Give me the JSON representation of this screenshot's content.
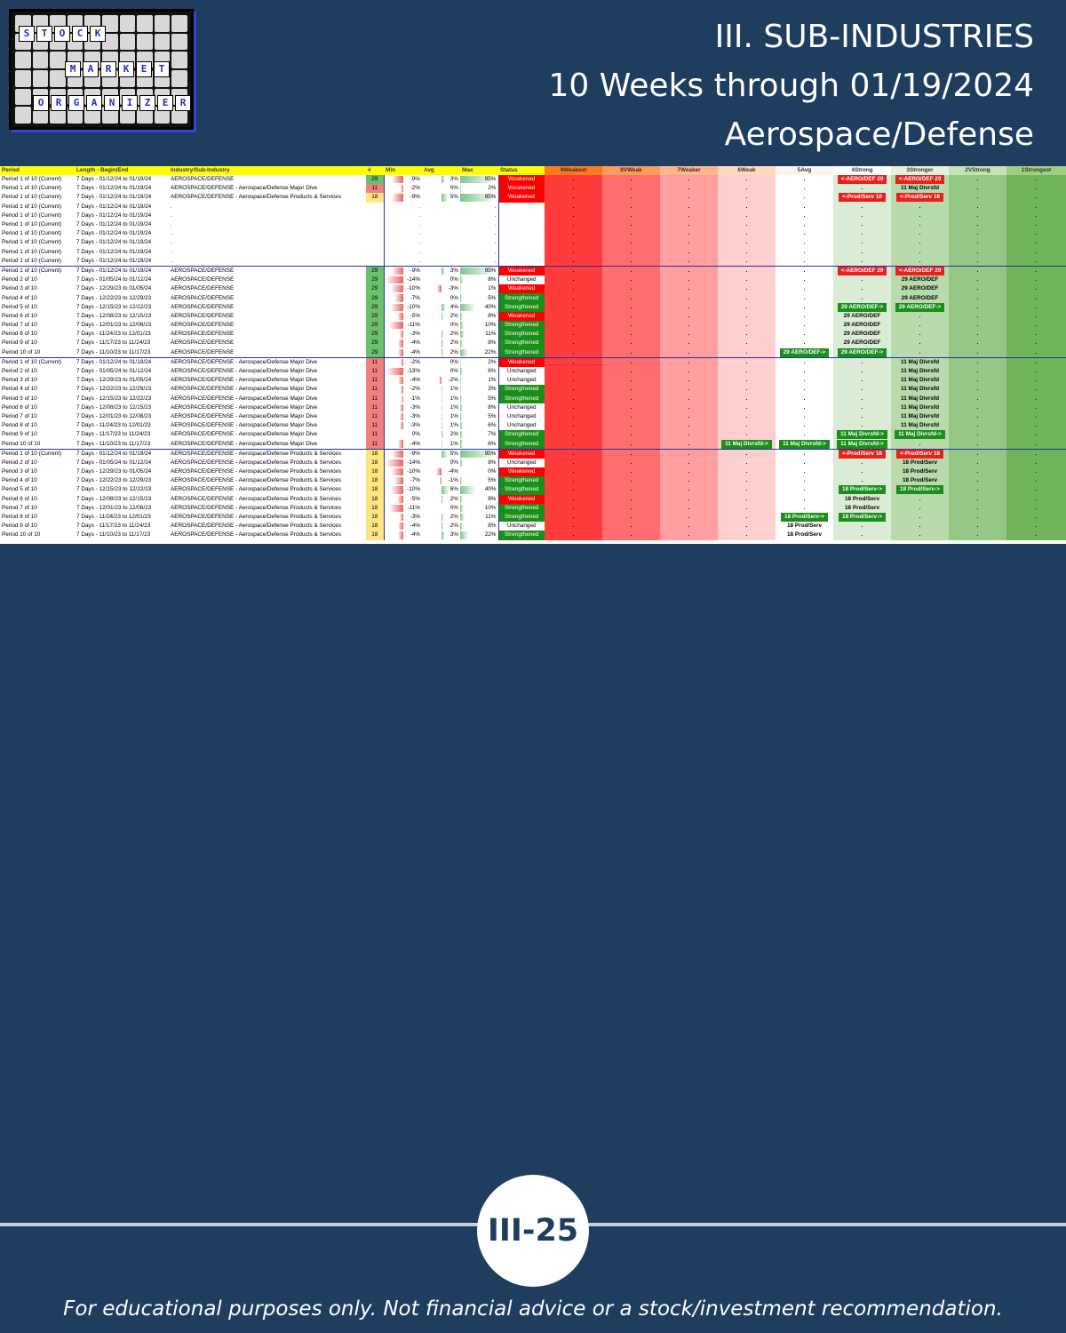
{
  "logo": {
    "words": [
      "STOCK",
      "MARKET",
      "ORGANIZER"
    ]
  },
  "title": {
    "line1": "III. SUB-INDUSTRIES",
    "line2": "10 Weeks through 01/19/2024",
    "line3": "Aerospace/Defense"
  },
  "table": {
    "columns": [
      "Period",
      "Length - Begin/End",
      "Industry/Sub-Industry",
      "#",
      "Min",
      "Avg",
      "Max",
      "Status",
      "9Weakest",
      "8VWeak",
      "7Weaker",
      "6Weak",
      "5Avg",
      "4Strong",
      "3Stronger",
      "2VStrong",
      "1Strongest"
    ],
    "colors": {
      "weakened": "#ff0000",
      "strengthened": "#1a8f1a",
      "header": "#ffff00"
    },
    "rows": [
      [
        "Period 1 of 10 (Current)",
        "7 Days - 01/12/24 to 01/19/24",
        "AEROSPACE/DEFENSE",
        "29",
        "-9%",
        "3%",
        "95%",
        "Weakened",
        "",
        "",
        "",
        "",
        "",
        "r:<-AERO/DEF 29",
        "r:<-AERO/DEF 29",
        "",
        ""
      ],
      [
        "Period 1 of 10 (Current)",
        "7 Days - 01/12/24 to 01/19/24",
        "AEROSPACE/DEFENSE - Aerospace/Defense Major Dive",
        "11",
        "-2%",
        "0%",
        "2%",
        "Weakened",
        "",
        "",
        "",
        "",
        "",
        "",
        "11 Maj Divrsfd",
        "",
        ""
      ],
      [
        "Period 1 of 10 (Current)",
        "7 Days - 01/12/24 to 01/19/24",
        "AEROSPACE/DEFENSE - Aerospace/Defense Products & Services",
        "18",
        "-9%",
        "5%",
        "95%",
        "Weakened",
        "",
        "",
        "",
        "",
        "",
        "r:<-Prod/Serv 18",
        "r:<-Prod/Serv 18",
        "",
        ""
      ],
      [
        "Period 1 of 10 (Current)",
        "7 Days - 01/12/24 to 01/19/24",
        ".",
        "",
        "",
        "",
        "",
        "",
        "",
        "",
        "",
        "",
        "",
        "",
        "",
        "",
        ""
      ],
      [
        "Period 1 of 10 (Current)",
        "7 Days - 01/12/24 to 01/19/24",
        ".",
        "",
        "",
        "",
        "",
        "",
        "",
        "",
        "",
        "",
        "",
        "",
        "",
        "",
        ""
      ],
      [
        "Period 1 of 10 (Current)",
        "7 Days - 01/12/24 to 01/19/24",
        ".",
        "",
        "",
        "",
        "",
        "",
        "",
        "",
        "",
        "",
        "",
        "",
        "",
        "",
        ""
      ],
      [
        "Period 1 of 10 (Current)",
        "7 Days - 01/12/24 to 01/19/24",
        ".",
        "",
        "",
        "",
        "",
        "",
        "",
        "",
        "",
        "",
        "",
        "",
        "",
        "",
        ""
      ],
      [
        "Period 1 of 10 (Current)",
        "7 Days - 01/12/24 to 01/19/24",
        ".",
        "",
        "",
        "",
        "",
        "",
        "",
        "",
        "",
        "",
        "",
        "",
        "",
        "",
        ""
      ],
      [
        "Period 1 of 10 (Current)",
        "7 Days - 01/12/24 to 01/19/24",
        ".",
        "",
        "",
        "",
        "",
        "",
        "",
        "",
        "",
        "",
        "",
        "",
        "",
        "",
        ""
      ],
      [
        "Period 1 of 10 (Current)",
        "7 Days - 01/12/24 to 01/19/24",
        ".",
        "",
        "",
        "",
        "",
        "",
        "",
        "",
        "",
        "",
        "",
        "",
        "",
        "",
        ""
      ],
      [
        "Period 1 of 10 (Current)",
        "7 Days - 01/12/24 to 01/19/24",
        "AEROSPACE/DEFENSE",
        "29",
        "-9%",
        "3%",
        "95%",
        "Weakened",
        "",
        "",
        "",
        "",
        "",
        "r:<-AERO/DEF 29",
        "r:<-AERO/DEF 29",
        "",
        ""
      ],
      [
        "Period 2 of 10",
        "7 Days - 01/05/24 to 01/12/24",
        "AEROSPACE/DEFENSE",
        "29",
        "-14%",
        "0%",
        "8%",
        "Unchanged",
        "",
        "",
        "",
        "",
        "",
        "",
        "29 AERO/DEF",
        "",
        ""
      ],
      [
        "Period 3 of 10",
        "7 Days - 12/29/23 to 01/05/24",
        "AEROSPACE/DEFENSE",
        "29",
        "-10%",
        "-3%",
        "1%",
        "Weakened",
        "",
        "",
        "",
        "",
        "",
        "",
        "29 AERO/DEF",
        "",
        ""
      ],
      [
        "Period 4 of 10",
        "7 Days - 12/22/23 to 12/29/23",
        "AEROSPACE/DEFENSE",
        "29",
        "-7%",
        "0%",
        "5%",
        "Strengthened",
        "",
        "",
        "",
        "",
        "",
        "",
        "29 AERO/DEF",
        "",
        ""
      ],
      [
        "Period 5 of 10",
        "7 Days - 12/15/23 to 12/22/23",
        "AEROSPACE/DEFENSE",
        "29",
        "-10%",
        "4%",
        "40%",
        "Strengthened",
        "",
        "",
        "",
        "",
        "",
        "g:29 AERO/DEF->",
        "g:29 AERO/DEF->",
        "",
        ""
      ],
      [
        "Period 6 of 10",
        "7 Days - 12/08/23 to 12/15/23",
        "AEROSPACE/DEFENSE",
        "29",
        "-5%",
        "2%",
        "8%",
        "Weakened",
        "",
        "",
        "",
        "",
        "",
        "29 AERO/DEF",
        "",
        "",
        ""
      ],
      [
        "Period 7 of 10",
        "7 Days - 12/01/23 to 12/08/23",
        "AEROSPACE/DEFENSE",
        "29",
        "-11%",
        "0%",
        "10%",
        "Strengthened",
        "",
        "",
        "",
        "",
        "",
        "29 AERO/DEF",
        "",
        "",
        ""
      ],
      [
        "Period 8 of 10",
        "7 Days - 11/24/23 to 12/01/23",
        "AEROSPACE/DEFENSE",
        "29",
        "-3%",
        "2%",
        "11%",
        "Strengthened",
        "",
        "",
        "",
        "",
        "",
        "29 AERO/DEF",
        "",
        "",
        ""
      ],
      [
        "Period 9 of 10",
        "7 Days - 11/17/23 to 11/24/23",
        "AEROSPACE/DEFENSE",
        "29",
        "-4%",
        "2%",
        "8%",
        "Strengthened",
        "",
        "",
        "",
        "",
        "",
        "29 AERO/DEF",
        "",
        "",
        ""
      ],
      [
        "Period 10 of 10",
        "7 Days - 11/10/23 to 11/17/23",
        "AEROSPACE/DEFENSE",
        "29",
        "-4%",
        "2%",
        "22%",
        "Strengthened",
        "",
        "",
        "",
        "",
        "g:29 AERO/DEF->",
        "g:29 AERO/DEF->",
        "",
        "",
        ""
      ],
      [
        "Period 1 of 10 (Current)",
        "7 Days - 01/12/24 to 01/19/24",
        "AEROSPACE/DEFENSE - Aerospace/Defense Major Dive",
        "11",
        "-2%",
        "0%",
        "2%",
        "Weakened",
        "",
        "",
        "",
        "",
        "",
        "",
        "11 Maj Divrsfd",
        "",
        ""
      ],
      [
        "Period 2 of 10",
        "7 Days - 01/05/24 to 01/12/24",
        "AEROSPACE/DEFENSE - Aerospace/Defense Major Dive",
        "11",
        "-13%",
        "0%",
        "6%",
        "Unchanged",
        "",
        "",
        "",
        "",
        "",
        "",
        "11 Maj Divrsfd",
        "",
        ""
      ],
      [
        "Period 3 of 10",
        "7 Days - 12/29/23 to 01/05/24",
        "AEROSPACE/DEFENSE - Aerospace/Defense Major Dive",
        "11",
        "-4%",
        "-2%",
        "1%",
        "Unchanged",
        "",
        "",
        "",
        "",
        "",
        "",
        "11 Maj Divrsfd",
        "",
        ""
      ],
      [
        "Period 4 of 10",
        "7 Days - 12/22/23 to 12/29/23",
        "AEROSPACE/DEFENSE - Aerospace/Defense Major Dive",
        "11",
        "-2%",
        "1%",
        "3%",
        "Strengthened",
        "",
        "",
        "",
        "",
        "",
        "",
        "11 Maj Divrsfd",
        "",
        ""
      ],
      [
        "Period 5 of 10",
        "7 Days - 12/15/23 to 12/22/23",
        "AEROSPACE/DEFENSE - Aerospace/Defense Major Dive",
        "11",
        "-1%",
        "1%",
        "5%",
        "Strengthened",
        "",
        "",
        "",
        "",
        "",
        "",
        "11 Maj Divrsfd",
        "",
        ""
      ],
      [
        "Period 6 of 10",
        "7 Days - 12/08/23 to 12/15/23",
        "AEROSPACE/DEFENSE - Aerospace/Defense Major Dive",
        "11",
        "-3%",
        "1%",
        "8%",
        "Unchanged",
        "",
        "",
        "",
        "",
        "",
        "",
        "11 Maj Divrsfd",
        "",
        ""
      ],
      [
        "Period 7 of 10",
        "7 Days - 12/01/23 to 12/08/23",
        "AEROSPACE/DEFENSE - Aerospace/Defense Major Dive",
        "11",
        "-3%",
        "1%",
        "5%",
        "Unchanged",
        "",
        "",
        "",
        "",
        "",
        "",
        "11 Maj Divrsfd",
        "",
        ""
      ],
      [
        "Period 8 of 10",
        "7 Days - 11/24/23 to 12/01/23",
        "AEROSPACE/DEFENSE - Aerospace/Defense Major Dive",
        "11",
        "-3%",
        "1%",
        "6%",
        "Unchanged",
        "",
        "",
        "",
        "",
        "",
        "",
        "11 Maj Divrsfd",
        "",
        ""
      ],
      [
        "Period 9 of 10",
        "7 Days - 11/17/23 to 11/24/23",
        "AEROSPACE/DEFENSE - Aerospace/Defense Major Dive",
        "11",
        "0%",
        "2%",
        "7%",
        "Strengthened",
        "",
        "",
        "",
        "",
        "",
        "g:11 Maj Divrsfd->",
        "g:11 Maj Divrsfd->",
        "",
        ""
      ],
      [
        "Period 10 of 10",
        "7 Days - 11/10/23 to 11/17/23",
        "AEROSPACE/DEFENSE - Aerospace/Defense Major Dive",
        "11",
        "-4%",
        "1%",
        "6%",
        "Strengthened",
        "",
        "",
        "",
        "g:11 Maj Divrsfd->",
        "g:11 Maj Divrsfd->",
        "g:11 Maj Divrsfd->",
        "",
        "",
        ""
      ],
      [
        "Period 1 of 10 (Current)",
        "7 Days - 01/12/24 to 01/19/24",
        "AEROSPACE/DEFENSE - Aerospace/Defense Products & Services",
        "18",
        "-9%",
        "5%",
        "95%",
        "Weakened",
        "",
        "",
        "",
        "",
        "",
        "r:<-Prod/Serv 18",
        "r:<-Prod/Serv 18",
        "",
        ""
      ],
      [
        "Period 2 of 10",
        "7 Days - 01/05/24 to 01/12/24",
        "AEROSPACE/DEFENSE - Aerospace/Defense Products & Services",
        "18",
        "-14%",
        "0%",
        "8%",
        "Unchanged",
        "",
        "",
        "",
        "",
        "",
        "",
        "18 Prod/Serv",
        "",
        ""
      ],
      [
        "Period 3 of 10",
        "7 Days - 12/29/23 to 01/05/24",
        "AEROSPACE/DEFENSE - Aerospace/Defense Products & Services",
        "18",
        "-10%",
        "-4%",
        "0%",
        "Weakened",
        "",
        "",
        "",
        "",
        "",
        "",
        "18 Prod/Serv",
        "",
        ""
      ],
      [
        "Period 4 of 10",
        "7 Days - 12/22/23 to 12/29/23",
        "AEROSPACE/DEFENSE - Aerospace/Defense Products & Services",
        "18",
        "-7%",
        "-1%",
        "5%",
        "Strengthened",
        "",
        "",
        "",
        "",
        "",
        "",
        "18 Prod/Serv",
        "",
        ""
      ],
      [
        "Period 5 of 10",
        "7 Days - 12/15/23 to 12/22/23",
        "AEROSPACE/DEFENSE - Aerospace/Defense Products & Services",
        "18",
        "-10%",
        "6%",
        "40%",
        "Strengthened",
        "",
        "",
        "",
        "",
        "",
        "g:18 Prod/Serv->",
        "g:18 Prod/Serv->",
        "",
        ""
      ],
      [
        "Period 6 of 10",
        "7 Days - 12/08/23 to 12/15/23",
        "AEROSPACE/DEFENSE - Aerospace/Defense Products & Services",
        "18",
        "-5%",
        "2%",
        "8%",
        "Weakened",
        "",
        "",
        "",
        "",
        "",
        "18 Prod/Serv",
        "",
        "",
        ""
      ],
      [
        "Period 7 of 10",
        "7 Days - 12/01/23 to 12/08/23",
        "AEROSPACE/DEFENSE - Aerospace/Defense Products & Services",
        "18",
        "-11%",
        "0%",
        "10%",
        "Strengthened",
        "",
        "",
        "",
        "",
        "",
        "18 Prod/Serv",
        "",
        "",
        ""
      ],
      [
        "Period 8 of 10",
        "7 Days - 11/24/23 to 12/01/23",
        "AEROSPACE/DEFENSE - Aerospace/Defense Products & Services",
        "18",
        "-3%",
        "2%",
        "11%",
        "Strengthened",
        "",
        "",
        "",
        "",
        "g:18 Prod/Serv->",
        "g:18 Prod/Serv->",
        "",
        "",
        ""
      ],
      [
        "Period 9 of 10",
        "7 Days - 11/17/23 to 11/24/23",
        "AEROSPACE/DEFENSE - Aerospace/Defense Products & Services",
        "18",
        "-4%",
        "2%",
        "8%",
        "Unchanged",
        "",
        "",
        "",
        "",
        "18 Prod/Serv",
        "",
        "",
        "",
        ""
      ],
      [
        "Period 10 of 10",
        "7 Days - 11/10/23 to 11/17/23",
        "AEROSPACE/DEFENSE - Aerospace/Defense Products & Services",
        "18",
        "-4%",
        "3%",
        "22%",
        "Strengthened",
        "",
        "",
        "",
        "",
        "18 Prod/Serv",
        "",
        "",
        "",
        ""
      ]
    ]
  },
  "footer": {
    "page_number": "III-25",
    "disclaimer": "For educational purposes only. Not financial advice or a stock/investment recommendation."
  }
}
